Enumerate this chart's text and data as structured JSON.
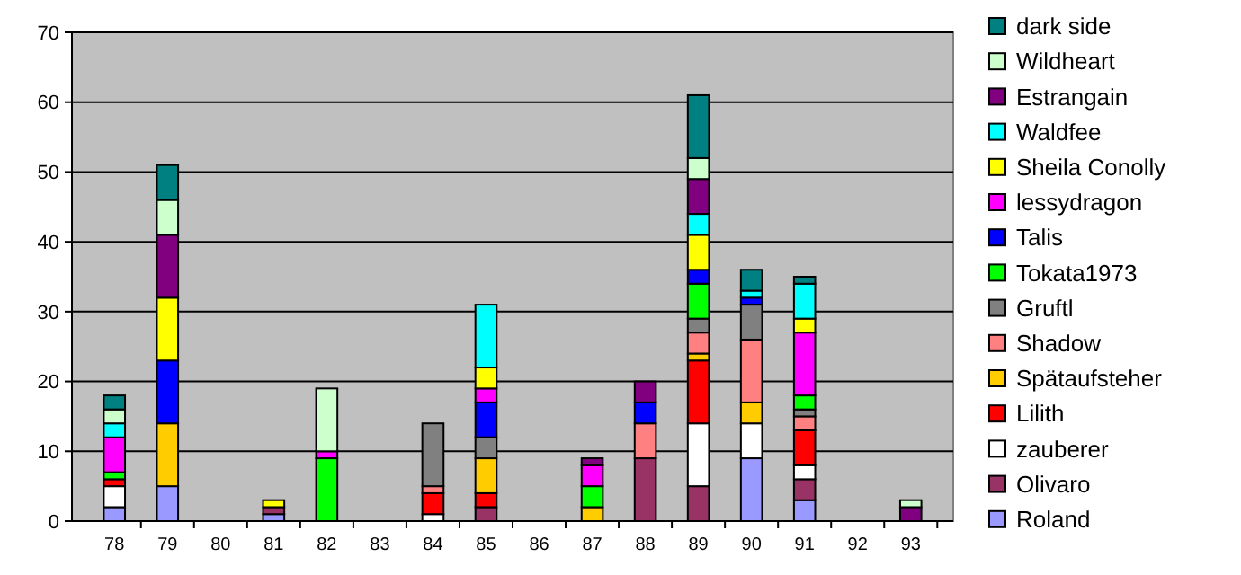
{
  "chart_data": {
    "type": "bar",
    "stacked": true,
    "categories": [
      "78",
      "79",
      "80",
      "81",
      "82",
      "83",
      "84",
      "85",
      "86",
      "87",
      "88",
      "89",
      "90",
      "91",
      "92",
      "93"
    ],
    "ylim": [
      0,
      70
    ],
    "yticks": [
      0,
      10,
      20,
      30,
      40,
      50,
      60,
      70
    ],
    "grid": "y",
    "legend": "right",
    "series": [
      {
        "name": "Roland",
        "color": "#9999ff",
        "values": [
          2,
          5,
          null,
          1,
          null,
          null,
          null,
          null,
          null,
          null,
          null,
          null,
          9,
          3,
          null,
          null
        ]
      },
      {
        "name": "Olivaro",
        "color": "#993366",
        "values": [
          null,
          null,
          null,
          1,
          null,
          null,
          null,
          2,
          null,
          null,
          9,
          5,
          null,
          3,
          null,
          null
        ]
      },
      {
        "name": "zauberer",
        "color": "#ffffff",
        "values": [
          3,
          null,
          null,
          null,
          null,
          null,
          1,
          null,
          null,
          null,
          null,
          9,
          5,
          2,
          null,
          null
        ]
      },
      {
        "name": "Lilith",
        "color": "#ff0000",
        "values": [
          1,
          null,
          null,
          null,
          null,
          null,
          3,
          2,
          null,
          null,
          null,
          9,
          null,
          5,
          null,
          null
        ]
      },
      {
        "name": "Spätaufsteher",
        "color": "#ffcc00",
        "values": [
          null,
          9,
          null,
          null,
          null,
          null,
          null,
          5,
          null,
          2,
          null,
          1,
          3,
          null,
          null,
          null
        ]
      },
      {
        "name": "Shadow",
        "color": "#ff8080",
        "values": [
          null,
          null,
          null,
          null,
          null,
          null,
          1,
          null,
          null,
          null,
          5,
          3,
          9,
          2,
          null,
          null
        ]
      },
      {
        "name": "Gruftl",
        "color": "#808080",
        "values": [
          null,
          null,
          null,
          null,
          null,
          null,
          9,
          3,
          null,
          null,
          null,
          2,
          5,
          1,
          null,
          null
        ]
      },
      {
        "name": "Tokata1973",
        "color": "#00ff00",
        "values": [
          1,
          null,
          null,
          null,
          9,
          null,
          null,
          null,
          null,
          3,
          null,
          5,
          null,
          2,
          null,
          null
        ]
      },
      {
        "name": "Talis",
        "color": "#0000ff",
        "values": [
          null,
          9,
          null,
          null,
          null,
          null,
          null,
          5,
          null,
          null,
          3,
          2,
          1,
          null,
          null,
          null
        ]
      },
      {
        "name": "lessydragon",
        "color": "#ff00ff",
        "values": [
          5,
          null,
          null,
          null,
          1,
          null,
          null,
          2,
          null,
          3,
          null,
          null,
          null,
          9,
          null,
          null
        ]
      },
      {
        "name": "Sheila Conolly",
        "color": "#ffff00",
        "values": [
          null,
          9,
          null,
          1,
          null,
          null,
          null,
          3,
          null,
          null,
          null,
          5,
          null,
          2,
          null,
          null
        ]
      },
      {
        "name": "Waldfee",
        "color": "#00ffff",
        "values": [
          2,
          null,
          null,
          null,
          null,
          null,
          null,
          9,
          null,
          null,
          null,
          3,
          1,
          5,
          null,
          null
        ]
      },
      {
        "name": "Estrangain",
        "color": "#800080",
        "values": [
          null,
          9,
          null,
          null,
          null,
          null,
          null,
          null,
          null,
          1,
          3,
          5,
          null,
          null,
          null,
          2
        ]
      },
      {
        "name": "Wildheart",
        "color": "#ccffcc",
        "values": [
          2,
          5,
          null,
          null,
          9,
          null,
          null,
          null,
          null,
          null,
          null,
          3,
          null,
          null,
          null,
          1
        ]
      },
      {
        "name": "dark side",
        "color": "#008080",
        "values": [
          2,
          5,
          null,
          null,
          null,
          null,
          null,
          null,
          null,
          null,
          null,
          9,
          3,
          1,
          null,
          null
        ]
      }
    ]
  }
}
